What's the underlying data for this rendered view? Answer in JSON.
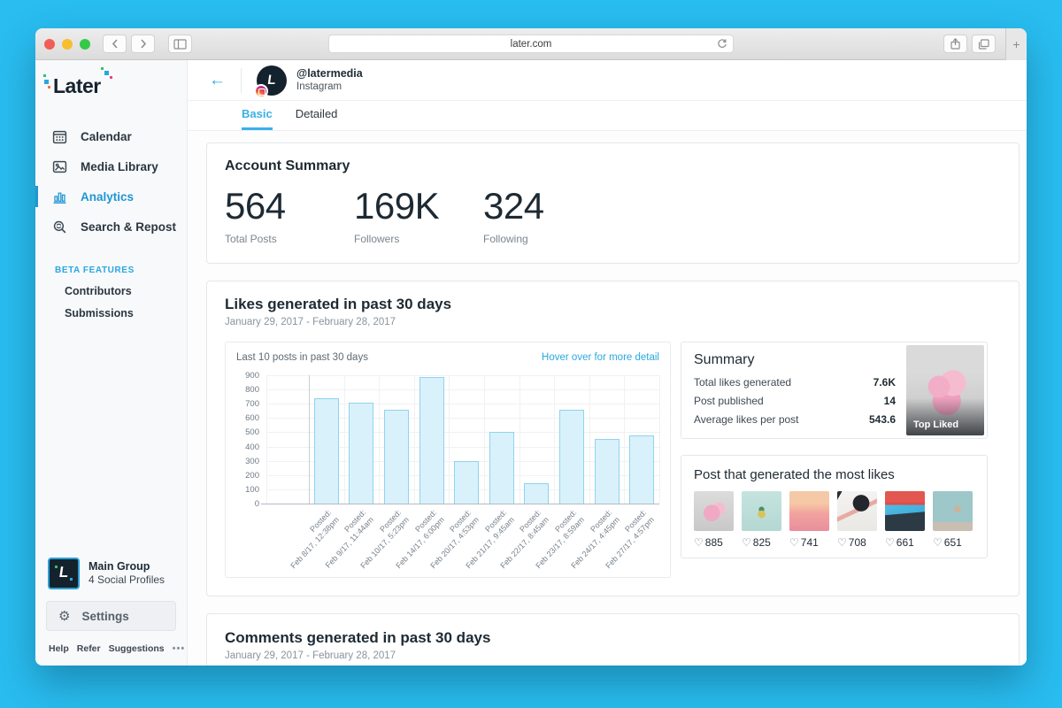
{
  "browser": {
    "url": "later.com",
    "new_tab_label": "+"
  },
  "sidebar": {
    "logo": "Later",
    "nav": [
      {
        "label": "Calendar",
        "icon": "calendar-icon",
        "active": false
      },
      {
        "label": "Media Library",
        "icon": "media-library-icon",
        "active": false
      },
      {
        "label": "Analytics",
        "icon": "analytics-icon",
        "active": true
      },
      {
        "label": "Search & Repost",
        "icon": "search-repost-icon",
        "active": false
      }
    ],
    "beta": {
      "heading": "BETA FEATURES",
      "items": [
        "Contributors",
        "Submissions"
      ]
    },
    "group": {
      "name": "Main Group",
      "subtitle": "4 Social Profiles"
    },
    "settings_label": "Settings",
    "footer": {
      "links": [
        "Help",
        "Refer",
        "Suggestions"
      ],
      "more": "•••"
    }
  },
  "profile_header": {
    "handle": "@latermedia",
    "platform": "Instagram"
  },
  "tabs": [
    {
      "label": "Basic",
      "active": true
    },
    {
      "label": "Detailed",
      "active": false
    }
  ],
  "account_summary": {
    "title": "Account Summary",
    "stats": [
      {
        "value": "564",
        "label": "Total Posts"
      },
      {
        "value": "169K",
        "label": "Followers"
      },
      {
        "value": "324",
        "label": "Following"
      }
    ]
  },
  "likes_section": {
    "title": "Likes generated in past 30 days",
    "date_range": "January 29, 2017 - February 28, 2017",
    "chart_caption": "Last 10 posts in past 30 days",
    "hover_hint": "Hover over for more detail",
    "summary": {
      "title": "Summary",
      "rows": [
        {
          "label": "Total likes generated",
          "value": "7.6K"
        },
        {
          "label": "Post published",
          "value": "14"
        },
        {
          "label": "Average likes per post",
          "value": "543.6"
        }
      ],
      "badge": "Top Liked"
    },
    "top_posts": {
      "title": "Post that generated the most likes",
      "heart_icon": "♡",
      "posts": [
        {
          "likes": "885",
          "image": "pink-flower-heart"
        },
        {
          "likes": "825",
          "image": "pineapple-on-teal"
        },
        {
          "likes": "741",
          "image": "pink-sunset-ocean"
        },
        {
          "likes": "708",
          "image": "clock-and-pencil"
        },
        {
          "likes": "661",
          "image": "hands-phone-red-banner"
        },
        {
          "likes": "651",
          "image": "girl-by-teal-wall"
        }
      ]
    }
  },
  "chart_data": {
    "type": "bar",
    "title": "Last 10 posts in past 30 days",
    "categories": [
      "Posted: Feb 8/17, 12:38pm",
      "Posted: Feb 9/17, 11:44am",
      "Posted: Feb 10/17, 5:23pm",
      "Posted: Feb 14/17, 6:00pm",
      "Posted: Feb 20/17, 4:53pm",
      "Posted: Feb 21/17, 9:45am",
      "Posted: Feb 22/17, 8:45am",
      "Posted: Feb 23/17, 8:59am",
      "Posted: Feb 24/17, 4:45pm",
      "Posted: Feb 27/17, 4:57pm"
    ],
    "values": [
      740,
      710,
      660,
      885,
      300,
      505,
      140,
      655,
      455,
      480
    ],
    "xlabel": "",
    "ylabel": "",
    "ylim": [
      0,
      900
    ],
    "ytick_step": 100,
    "grid": true,
    "legend": false,
    "bar_fill": "#d9f1fa",
    "bar_border": "#8fd4ef"
  },
  "comments_section": {
    "title": "Comments generated in past 30 days",
    "date_range": "January 29, 2017 - February 28, 2017"
  }
}
